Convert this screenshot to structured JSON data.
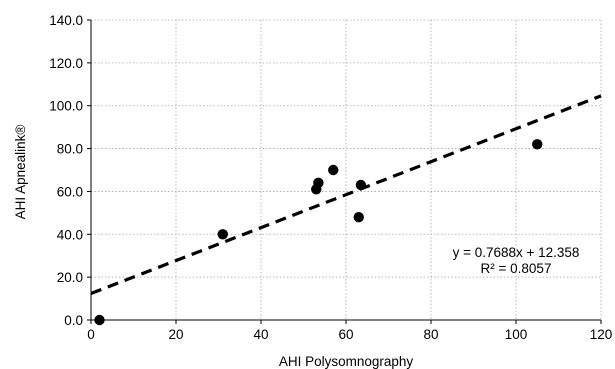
{
  "chart_data": {
    "type": "scatter",
    "xlabel": "AHI Polysomnography",
    "ylabel": "AHI Apnealink®",
    "xlim": [
      0,
      120
    ],
    "ylim": [
      0,
      140
    ],
    "x_ticks": [
      "0",
      "20",
      "40",
      "60",
      "80",
      "100",
      "120"
    ],
    "y_ticks": [
      "0.0",
      "20.0",
      "40.0",
      "60.0",
      "80.0",
      "100.0",
      "120.0",
      "140.0"
    ],
    "x_tick_values": [
      0,
      20,
      40,
      60,
      80,
      100,
      120
    ],
    "y_tick_values": [
      0,
      20,
      40,
      60,
      80,
      100,
      120,
      140
    ],
    "grid": true,
    "points": [
      {
        "x": 2,
        "y": 0
      },
      {
        "x": 31,
        "y": 40
      },
      {
        "x": 53,
        "y": 61
      },
      {
        "x": 53.5,
        "y": 64
      },
      {
        "x": 57,
        "y": 70
      },
      {
        "x": 63,
        "y": 48
      },
      {
        "x": 63.5,
        "y": 63
      },
      {
        "x": 105,
        "y": 82
      }
    ],
    "trendline": {
      "slope": 0.7688,
      "intercept": 12.358,
      "x_range": [
        0,
        120
      ],
      "style": "dashed"
    },
    "annotations": {
      "equation": "y = 0.7688x + 12.358",
      "r_squared": "R² = 0.8057"
    },
    "colors": {
      "points": "#000000",
      "trendline": "#000000",
      "grid": "#a6a6a6"
    }
  }
}
